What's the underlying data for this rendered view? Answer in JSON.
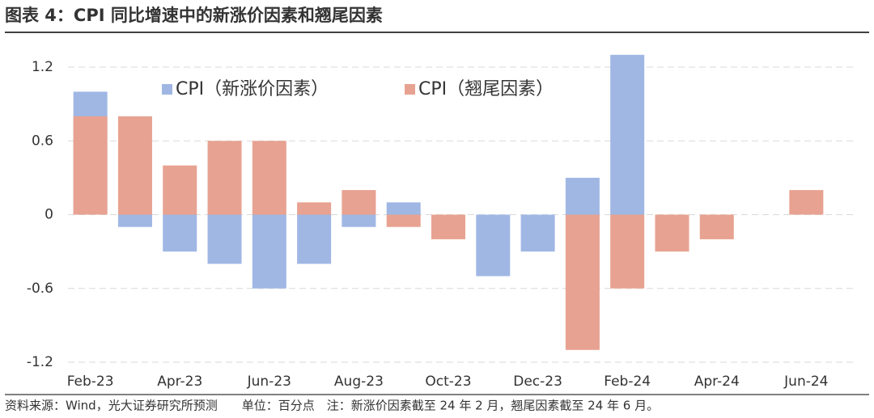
{
  "chart_data": {
    "type": "bar",
    "title": "图表 4：CPI 同比增速中的新涨价因素和翘尾因素",
    "source": "资料来源：Wind，光大证券研究所预测　　单位：百分点　注：新涨价因素截至 24 年 2 月，翘尾因素截至 24 年 6 月。",
    "categories": [
      "Feb-23",
      null,
      "Apr-23",
      null,
      "Jun-23",
      null,
      "Aug-23",
      null,
      "Oct-23",
      null,
      "Dec-23",
      null,
      "Feb-24",
      null,
      "Apr-24",
      null,
      "Jun-24"
    ],
    "series": [
      {
        "name": "CPI（新涨价因素）",
        "color": "#a0b7e4",
        "values": [
          1.0,
          -0.1,
          -0.3,
          -0.4,
          -0.6,
          -0.4,
          -0.1,
          0.1,
          0,
          -0.5,
          -0.3,
          0.3,
          1.3,
          null,
          null,
          null,
          null
        ]
      },
      {
        "name": "CPI（翘尾因素）",
        "color": "#e8a291",
        "values": [
          0.8,
          0.8,
          0.4,
          0.6,
          0.6,
          0.1,
          0.2,
          -0.1,
          -0.2,
          0,
          0,
          -1.1,
          -0.6,
          -0.3,
          -0.2,
          0,
          0.2
        ]
      }
    ],
    "ylim": [
      -1.2,
      1.4
    ],
    "yticks": [
      1.2,
      0.6,
      0,
      -0.6,
      -1.2
    ],
    "grid": true
  }
}
